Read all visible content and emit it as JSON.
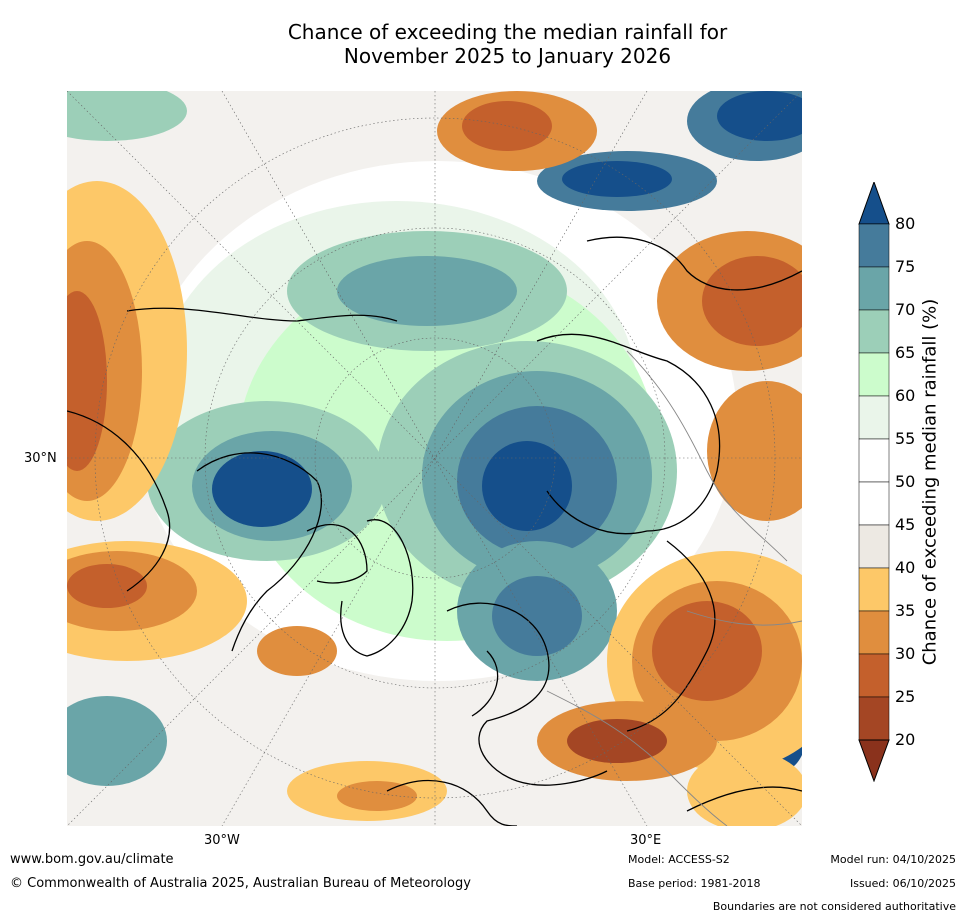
{
  "title_line1": "Chance of exceeding the median rainfall for",
  "title_line2": "November 2025 to January 2026",
  "map": {
    "projection": "north-polar-stereographic",
    "labels": {
      "lat_30n": "30°N",
      "lon_30w": "30°W",
      "lon_30e": "30°E"
    }
  },
  "colorbar": {
    "title": "Chance of exceeding median rainfall (%)",
    "ticks": [
      "80",
      "75",
      "70",
      "65",
      "60",
      "55",
      "50",
      "45",
      "40",
      "35",
      "30",
      "25",
      "20"
    ],
    "colors": {
      "gt80": "#154f8b",
      "75_80": "#457b9b",
      "70_75": "#6aa5a8",
      "65_70": "#9ccfb8",
      "60_65": "#ccfccc",
      "55_60": "#eaf5ea",
      "45_55": "#ffffff",
      "40_45": "#ede9e3",
      "35_40": "#fdc868",
      "30_35": "#e08e3e",
      "25_30": "#c4602c",
      "20_25": "#a44624",
      "lt20": "#8a321c"
    }
  },
  "footer": {
    "url": "www.bom.gov.au/climate",
    "copyright": "© Commonwealth of Australia 2025, Australian Bureau of Meteorology",
    "model": "Model: ACCESS-S2",
    "base_period": "Base period: 1981-2018",
    "model_run": "Model run: 04/10/2025",
    "issued": "Issued: 06/10/2025",
    "disclaimer": "Boundaries are not considered authoritative"
  }
}
